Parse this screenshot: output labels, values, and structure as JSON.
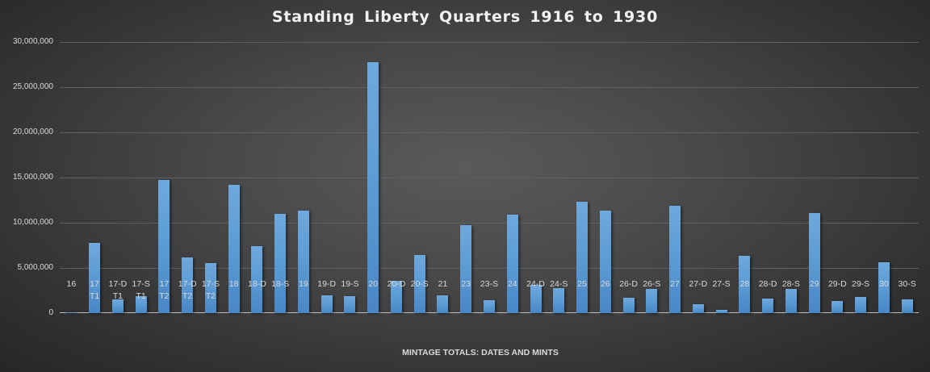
{
  "chart_data": {
    "type": "bar",
    "title": "Standing Liberty Quarters 1916 to 1930",
    "xlabel": "MINTAGE TOTALS: DATES AND MINTS",
    "ylabel": "",
    "ylim": [
      0,
      30000000
    ],
    "yticks": [
      "0",
      "5,000,000",
      "10,000,000",
      "15,000,000",
      "20,000,000",
      "25,000,000",
      "30,000,000"
    ],
    "grid": true,
    "legend": "none",
    "categories": [
      "16",
      "17 T1",
      "17-D T1",
      "17-S T1",
      "17 T2",
      "17-D T2",
      "17-S T2",
      "18",
      "18-D",
      "18-S",
      "19",
      "19-D",
      "19-S",
      "20",
      "20-D",
      "20-S",
      "21",
      "23",
      "23-S",
      "24",
      "24-D",
      "24-S",
      "25",
      "26",
      "26-D",
      "26-S",
      "27",
      "27-D",
      "27-S",
      "28",
      "28-D",
      "28-S",
      "29",
      "29-D",
      "29-S",
      "30",
      "30-S"
    ],
    "category_lines": [
      [
        "16",
        ""
      ],
      [
        "17",
        "T1"
      ],
      [
        "17-D",
        "T1"
      ],
      [
        "17-S",
        "T1"
      ],
      [
        "17",
        "T2"
      ],
      [
        "17-D",
        "T2"
      ],
      [
        "17-S",
        "T2"
      ],
      [
        "18",
        ""
      ],
      [
        "18-D",
        ""
      ],
      [
        "18-S",
        ""
      ],
      [
        "19",
        ""
      ],
      [
        "19-D",
        ""
      ],
      [
        "19-S",
        ""
      ],
      [
        "20",
        ""
      ],
      [
        "20-D",
        ""
      ],
      [
        "20-S",
        ""
      ],
      [
        "21",
        ""
      ],
      [
        "23",
        ""
      ],
      [
        "23-S",
        ""
      ],
      [
        "24",
        ""
      ],
      [
        "24-D",
        ""
      ],
      [
        "24-S",
        ""
      ],
      [
        "25",
        ""
      ],
      [
        "26",
        ""
      ],
      [
        "26-D",
        ""
      ],
      [
        "26-S",
        ""
      ],
      [
        "27",
        ""
      ],
      [
        "27-D",
        ""
      ],
      [
        "27-S",
        ""
      ],
      [
        "28",
        ""
      ],
      [
        "28-D",
        ""
      ],
      [
        "28-S",
        ""
      ],
      [
        "29",
        ""
      ],
      [
        "29-D",
        ""
      ],
      [
        "29-S",
        ""
      ],
      [
        "30",
        ""
      ],
      [
        "30-S",
        ""
      ]
    ],
    "values": [
      52000,
      7800000,
      1500000,
      1900000,
      14700000,
      6200000,
      5500000,
      14200000,
      7400000,
      11000000,
      11300000,
      1950000,
      1850000,
      27800000,
      3600000,
      6400000,
      1950000,
      9700000,
      1400000,
      10900000,
      3100000,
      2800000,
      12300000,
      11300000,
      1700000,
      2700000,
      11900000,
      980000,
      400000,
      6300000,
      1650000,
      2650000,
      11100000,
      1350000,
      1750000,
      5600000,
      1550000
    ],
    "colors": {
      "bar": "#5b9bd5",
      "gridline": "#606060",
      "text": "#d9d9d9",
      "title": "#f2f2f2"
    }
  }
}
